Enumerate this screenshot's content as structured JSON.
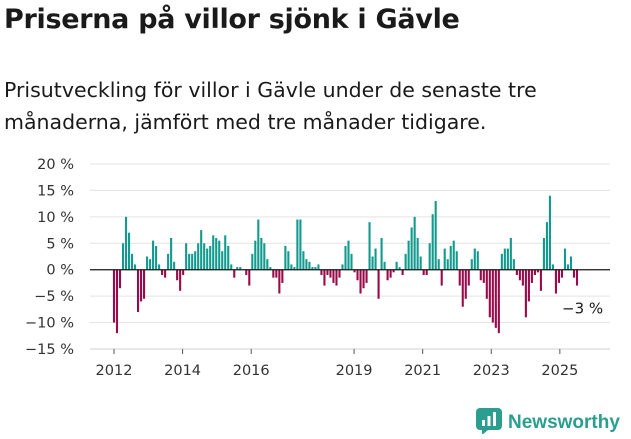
{
  "title": "Priserna på villor sjönk i Gävle",
  "subtitle": "Prisutveckling för villor i Gävle under de senaste tre månaderna, jämfört med tre månader tidigare.",
  "brand": {
    "name": "Newsworthy",
    "icon": "newsworthy-chart-logo-icon"
  },
  "colors": {
    "positive": "#139a8e",
    "negative": "#990a4a",
    "brand": "#2b9e8f"
  },
  "chart_data": {
    "type": "bar",
    "title": "",
    "xlabel": "",
    "ylabel": "",
    "ylim": [
      -15,
      20
    ],
    "y_ticks": [
      20,
      15,
      10,
      5,
      0,
      -5,
      -10,
      -15
    ],
    "y_tick_labels": [
      "20 %",
      "15 %",
      "10 %",
      "5 %",
      "0 %",
      "−5 %",
      "−10 %",
      "−15 %"
    ],
    "x_ticks": [
      2012,
      2014,
      2016,
      2019,
      2021,
      2023,
      2025
    ],
    "x_tick_labels": [
      "2012",
      "2014",
      "2016",
      "2019",
      "2021",
      "2023",
      "2025"
    ],
    "x_start": 2012,
    "x_end": 2025.5,
    "end_label": "−3 %",
    "grid": true,
    "legend": "none",
    "values": [
      -10,
      -12,
      -3.5,
      5,
      10,
      7,
      3,
      1,
      -8,
      -6,
      -5.5,
      2.5,
      2,
      5.5,
      4.5,
      1,
      -1,
      -1.5,
      3,
      6,
      1.5,
      -2,
      -4,
      -1,
      5,
      3,
      3,
      3.5,
      5,
      7.5,
      5,
      4,
      4.5,
      6.5,
      6,
      5.5,
      3.5,
      6.5,
      4.5,
      1,
      -1.5,
      0.5,
      0.5,
      0,
      -1,
      -3,
      3,
      5.5,
      9.5,
      6,
      5,
      2,
      0.5,
      -1.5,
      -1.5,
      -4.5,
      -2.5,
      4.5,
      3.5,
      1,
      0.5,
      9.5,
      9.5,
      3.5,
      2,
      1.5,
      0.5,
      0.5,
      1,
      -1,
      -3,
      -1,
      -1.5,
      -2.5,
      -3,
      -1.5,
      1,
      4.5,
      5.5,
      3,
      -0.5,
      -2,
      -4.5,
      -3.5,
      -2.5,
      9,
      2.5,
      4,
      -5.5,
      6,
      1.5,
      -2,
      -1.5,
      -0.5,
      1.5,
      0.5,
      -1,
      3,
      5.5,
      8,
      10,
      6,
      2.5,
      -1,
      -1,
      5,
      10.5,
      13,
      2,
      -3,
      4,
      2,
      4.5,
      5.5,
      3.5,
      -3,
      -7,
      -5.5,
      -3,
      2,
      4,
      3.5,
      -2,
      -2.5,
      -5.5,
      -9,
      -10,
      -11,
      -12,
      3,
      4,
      4,
      6,
      2,
      -1,
      -2,
      -3,
      -9,
      -6,
      -2.5,
      -1,
      -0.5,
      -4,
      6,
      9,
      14,
      1,
      -4.5,
      -2.5,
      -1.5,
      4,
      1,
      2.5,
      -1.5,
      -3
    ]
  }
}
